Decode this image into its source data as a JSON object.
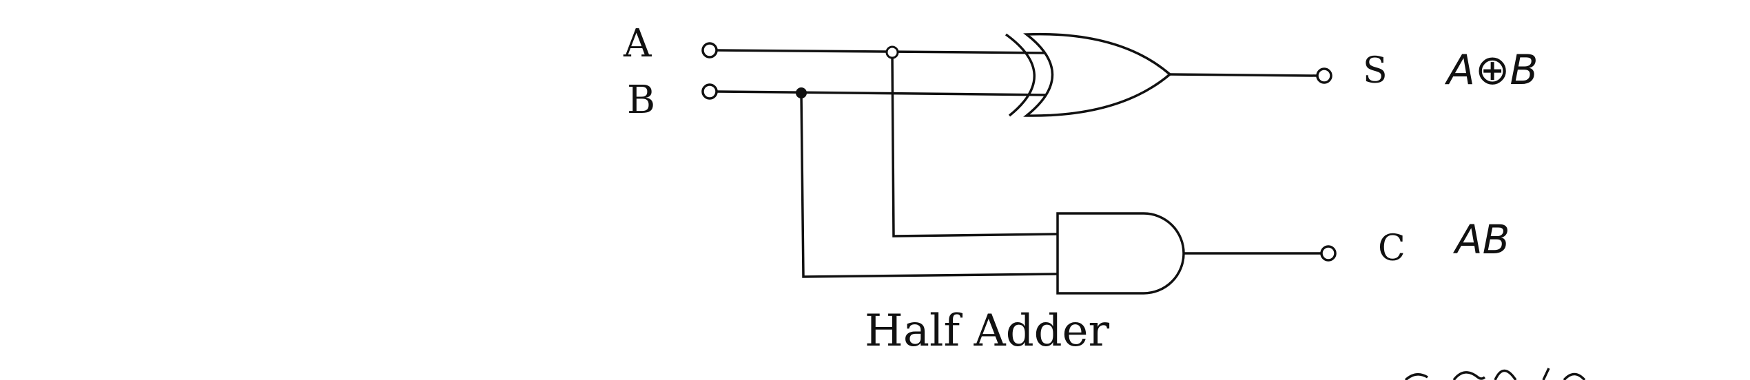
{
  "inputs": {
    "a": "A",
    "b": "B"
  },
  "outputs": {
    "sum": "S",
    "carry": "C"
  },
  "annotations": {
    "sum_expression": "A⊕B",
    "carry_expression": "AB"
  },
  "caption": "Half Adder",
  "gates": {
    "sum_gate": "xor-gate",
    "carry_gate": "and-gate"
  }
}
